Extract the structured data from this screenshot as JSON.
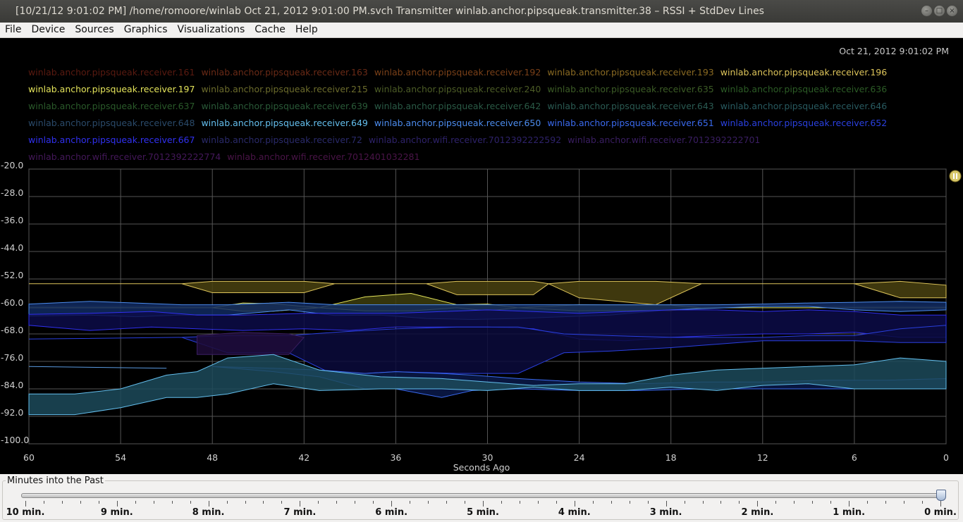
{
  "window": {
    "title": "[10/21/12 9:01:02 PM] /home/romoore/winlab Oct 21, 2012 9:01:00 PM.svch Transmitter winlab.anchor.pipsqueak.transmitter.38 – RSSI + StdDev Lines",
    "buttons": [
      "minimize-icon",
      "maximize-icon",
      "close-icon"
    ]
  },
  "menu": [
    "File",
    "Device",
    "Sources",
    "Graphics",
    "Visualizations",
    "Cache",
    "Help"
  ],
  "timestamp": "Oct 21, 2012 9:01:02 PM",
  "legend_rows": [
    [
      {
        "label": "winlab.anchor.pipsqueak.receiver.161",
        "color": "#5a1a10"
      },
      {
        "label": "winlab.anchor.pipsqueak.receiver.163",
        "color": "#6a2a16"
      },
      {
        "label": "winlab.anchor.pipsqueak.receiver.192",
        "color": "#7a4018"
      },
      {
        "label": "winlab.anchor.pipsqueak.receiver.193",
        "color": "#8a6a22"
      },
      {
        "label": "winlab.anchor.pipsqueak.receiver.196",
        "color": "#ddc45a"
      }
    ],
    [
      {
        "label": "winlab.anchor.pipsqueak.receiver.197",
        "color": "#e4e45a"
      },
      {
        "label": "winlab.anchor.pipsqueak.receiver.215",
        "color": "#6c6c2c"
      },
      {
        "label": "winlab.anchor.pipsqueak.receiver.240",
        "color": "#4c5c26"
      },
      {
        "label": "winlab.anchor.pipsqueak.receiver.635",
        "color": "#3c5c26"
      },
      {
        "label": "winlab.anchor.pipsqueak.receiver.636",
        "color": "#2c5c26"
      }
    ],
    [
      {
        "label": "winlab.anchor.pipsqueak.receiver.637",
        "color": "#2a5a2a"
      },
      {
        "label": "winlab.anchor.pipsqueak.receiver.639",
        "color": "#2a5a38"
      },
      {
        "label": "winlab.anchor.pipsqueak.receiver.642",
        "color": "#2a5a46"
      },
      {
        "label": "winlab.anchor.pipsqueak.receiver.643",
        "color": "#2a5a52"
      },
      {
        "label": "winlab.anchor.pipsqueak.receiver.646",
        "color": "#285a60"
      }
    ],
    [
      {
        "label": "winlab.anchor.pipsqueak.receiver.648",
        "color": "#2a4a6a"
      },
      {
        "label": "winlab.anchor.pipsqueak.receiver.649",
        "color": "#64bfee"
      },
      {
        "label": "winlab.anchor.pipsqueak.receiver.650",
        "color": "#4c8cee"
      },
      {
        "label": "winlab.anchor.pipsqueak.receiver.651",
        "color": "#3a6aee"
      },
      {
        "label": "winlab.anchor.pipsqueak.receiver.652",
        "color": "#2a40e0"
      }
    ],
    [
      {
        "label": "winlab.anchor.pipsqueak.receiver.667",
        "color": "#3030f0"
      },
      {
        "label": "winlab.anchor.pipsqueak.receiver.72",
        "color": "#2a2a6a"
      },
      {
        "label": "winlab.anchor.wifi.receiver.7012392222592",
        "color": "#2e226a"
      },
      {
        "label": "winlab.anchor.wifi.receiver.7012392222701",
        "color": "#3a1e62"
      }
    ],
    [
      {
        "label": "winlab.anchor.wifi.receiver.7012392222774",
        "color": "#44185a"
      },
      {
        "label": "winlab.anchor.wifi.receiver.7012401032281",
        "color": "#4a1448"
      }
    ]
  ],
  "chart_data": {
    "type": "area",
    "xlabel": "Seconds Ago",
    "ylabel": "",
    "xlim": [
      60,
      0
    ],
    "ylim": [
      -100,
      -20
    ],
    "x_ticks": [
      "60",
      "54",
      "48",
      "42",
      "36",
      "30",
      "24",
      "18",
      "12",
      "6",
      "0"
    ],
    "y_ticks": [
      "-20.0",
      "-28.0",
      "-36.0",
      "-44.0",
      "-52.0",
      "-60.0",
      "-68.0",
      "-76.0",
      "-84.0",
      "-92.0",
      "-100.0"
    ],
    "grid": true,
    "series": [
      {
        "name": "winlab.anchor.pipsqueak.receiver.196",
        "color": "#ddc45a",
        "fill": "#4a4210",
        "x": [
          60,
          50,
          48,
          42,
          40,
          34,
          32,
          27,
          26,
          24,
          19,
          16,
          12,
          6,
          3,
          0
        ],
        "lower": [
          -53.4,
          -53.4,
          -56,
          -56,
          -53.4,
          -53.4,
          -56.6,
          -56.6,
          -53.4,
          -57.5,
          -59.5,
          -53.4,
          -53.4,
          -53.4,
          -57.5,
          -57.5
        ],
        "upper": [
          -53.4,
          -53.4,
          -52.7,
          -52.7,
          -53.4,
          -53.4,
          -52.7,
          -52.7,
          -53.4,
          -52.7,
          -52.7,
          -53.4,
          -53.4,
          -53.4,
          -52.7,
          -53.8
        ]
      },
      {
        "name": "winlab.anchor.pipsqueak.receiver.197",
        "color": "#e4e45a",
        "fill": "#3e3e0e",
        "x": [
          60,
          48,
          46,
          44,
          41,
          38,
          35,
          32,
          30,
          28,
          24,
          22,
          18,
          16,
          12,
          6,
          0
        ],
        "lower": [
          -60.4,
          -60.4,
          -61.4,
          -61.4,
          -60.4,
          -61.3,
          -61.3,
          -60.4,
          -61.3,
          -60.4,
          -61.3,
          -61.2,
          -61.2,
          -60.4,
          -60.4,
          -60.4,
          -60.4
        ],
        "upper": [
          -60.4,
          -60.4,
          -59,
          -59.2,
          -60.4,
          -57.2,
          -56.2,
          -59.5,
          -59.3,
          -60.4,
          -59.5,
          -59.6,
          -59.6,
          -60.4,
          -60.4,
          -60.4,
          -60.4
        ]
      },
      {
        "name": "winlab.anchor.pipsqueak.receiver.650",
        "color": "#4c8cee",
        "fill": "#102a60",
        "x": [
          60,
          56,
          53,
          50,
          47,
          43,
          40,
          37,
          34,
          31,
          28,
          25,
          22,
          18,
          15,
          12,
          9,
          6,
          3,
          0
        ],
        "lower": [
          -62.8,
          -62.5,
          -63,
          -62.5,
          -62.5,
          -61,
          -62.6,
          -62.5,
          -63.5,
          -63.8,
          -63.5,
          -63,
          -62.5,
          -61,
          -60.5,
          -60,
          -60,
          -61,
          -61.5,
          -61
        ],
        "upper": [
          -59.3,
          -58.5,
          -59,
          -59.5,
          -59.5,
          -58.8,
          -59.5,
          -59.5,
          -59.5,
          -59.5,
          -59.5,
          -59.5,
          -59.5,
          -59.5,
          -59.5,
          -59.3,
          -59,
          -58.8,
          -58.5,
          -58.8
        ]
      },
      {
        "name": "winlab.anchor.pipsqueak.receiver.667",
        "color": "#3030f0",
        "fill": "#0c0c48",
        "x": [
          60,
          56,
          52,
          49,
          46,
          42,
          39,
          36,
          33,
          30,
          27,
          24,
          21,
          18,
          15,
          12,
          9,
          6,
          3,
          0
        ],
        "lower": [
          -65.5,
          -67,
          -66,
          -66.5,
          -67,
          -66.5,
          -67,
          -66,
          -66,
          -66,
          -66.5,
          -69.5,
          -70,
          -69,
          -68.5,
          -68,
          -68,
          -67.5,
          -69,
          -69
        ],
        "upper": [
          -62.3,
          -62,
          -61.5,
          -62.5,
          -62.5,
          -62,
          -62,
          -62,
          -61.5,
          -61,
          -61.5,
          -62,
          -61.5,
          -61,
          -61,
          -61.5,
          -61,
          -61.5,
          -62.5,
          -62.5
        ]
      },
      {
        "name": "winlab.anchor.pipsqueak.receiver.652",
        "color": "#2a40e0",
        "fill": "#0a0a3c",
        "x": [
          60,
          50,
          47,
          43,
          40,
          36,
          32,
          28,
          25,
          22,
          18,
          15,
          12,
          9,
          6,
          3,
          0
        ],
        "lower": [
          -69.5,
          -69,
          -73.5,
          -73.5,
          -80,
          -79,
          -79.5,
          -79.5,
          -73.5,
          -73,
          -72,
          -71,
          -70,
          -70,
          -70,
          -70.5,
          -70.5
        ],
        "upper": [
          -69.5,
          -69,
          -68.5,
          -68.5,
          -67.5,
          -66.5,
          -66,
          -66,
          -68,
          -68.5,
          -69,
          -69,
          -69,
          -68.5,
          -68.5,
          -66.5,
          -65.5
        ]
      },
      {
        "name": "winlab.anchor.wifi.receiver.7012392222701",
        "color": "#3a1e62",
        "fill": "#1e0c38",
        "x": [
          49,
          46,
          43,
          42
        ],
        "lower": [
          -74,
          -74,
          -74,
          -69
        ],
        "upper": [
          -68.5,
          -67.5,
          -68,
          -69
        ]
      },
      {
        "name": "winlab.anchor.pipsqueak.receiver.651",
        "color": "#3a6aee",
        "fill": "#0a1a4a",
        "x": [
          48,
          44,
          41,
          38,
          36,
          33,
          31,
          28,
          24,
          20,
          16,
          12,
          8,
          4,
          0
        ],
        "lower": [
          -77.5,
          -79,
          -80.5,
          -84,
          -84,
          -86.5,
          -84.5,
          -84,
          -84.5,
          -84.5,
          -84,
          -84,
          -84,
          -84,
          -84
        ],
        "upper": [
          -77.5,
          -78,
          -78.5,
          -79.5,
          -79,
          -79.5,
          -80,
          -81,
          -82,
          -82.5,
          -82,
          -82,
          -81.5,
          -81.5,
          -81
        ]
      },
      {
        "name": "winlab.anchor.pipsqueak.receiver.649",
        "color": "#64bfee",
        "fill": "#1c4a5a",
        "x": [
          60,
          57,
          54,
          51,
          49,
          47,
          44,
          41,
          37,
          33,
          30,
          27,
          24,
          21,
          18,
          15,
          12,
          9,
          6,
          3,
          0
        ],
        "lower": [
          -91.5,
          -91.5,
          -89.5,
          -86.5,
          -86.5,
          -85.5,
          -82.5,
          -84.5,
          -84,
          -84,
          -84.5,
          -83.5,
          -84.5,
          -84.5,
          -83.5,
          -84.5,
          -83,
          -82.5,
          -84,
          -84,
          -84
        ],
        "upper": [
          -85.5,
          -85.5,
          -84,
          -80,
          -79,
          -75,
          -74,
          -78.5,
          -80.5,
          -81,
          -82,
          -83,
          -82.5,
          -82.5,
          -80,
          -78.5,
          -78,
          -77.5,
          -77,
          -75,
          -76
        ]
      },
      {
        "name": "winlab.anchor.pipsqueak.receiver.648",
        "color": "#5a9ae0",
        "fill": null,
        "x": [
          60,
          51
        ],
        "lower": [
          -77.5,
          -78
        ],
        "upper": [
          -77.5,
          -78
        ]
      }
    ]
  },
  "slider": {
    "caption": "Minutes into the Past",
    "value": 0,
    "max": 10,
    "ticks": [
      "10 min.",
      "9 min.",
      "8 min.",
      "7 min.",
      "6 min.",
      "5 min.",
      "4 min.",
      "3 min.",
      "2 min.",
      "1 min.",
      "0 min."
    ]
  },
  "scroll_handle_icon": "pause-icon"
}
